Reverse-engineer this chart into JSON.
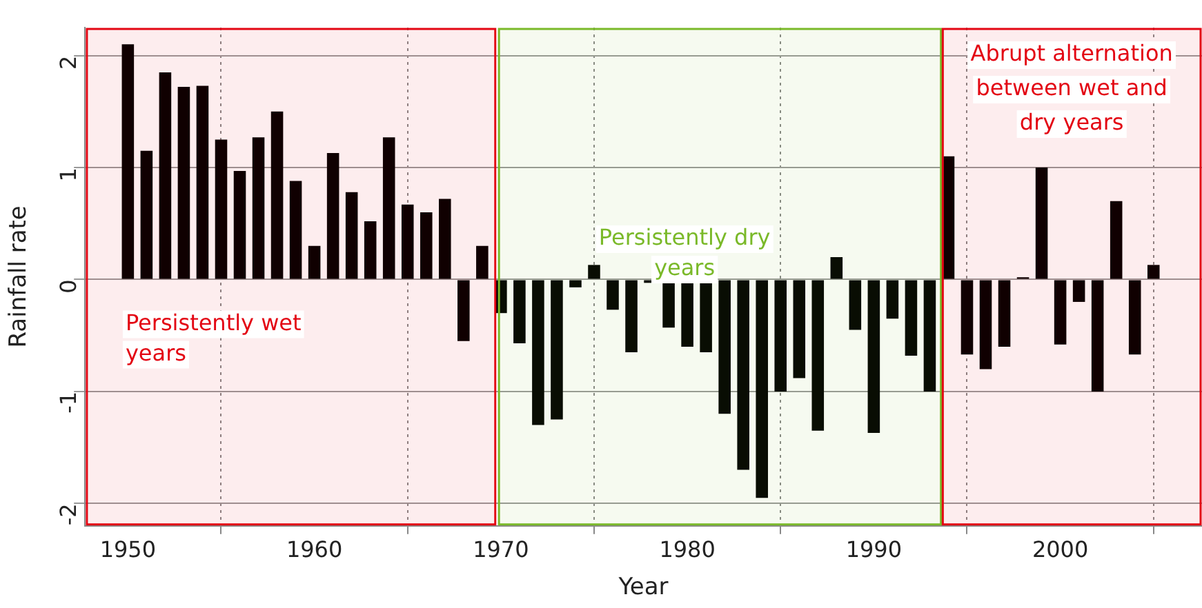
{
  "chart_data": {
    "type": "bar",
    "xlabel": "Year",
    "ylabel": "Rainfall rate",
    "x": [
      1950,
      1951,
      1952,
      1953,
      1954,
      1955,
      1956,
      1957,
      1958,
      1959,
      1960,
      1961,
      1962,
      1963,
      1964,
      1965,
      1966,
      1967,
      1968,
      1969,
      1970,
      1971,
      1972,
      1973,
      1974,
      1975,
      1976,
      1977,
      1978,
      1979,
      1980,
      1981,
      1982,
      1983,
      1984,
      1985,
      1986,
      1987,
      1988,
      1989,
      1990,
      1991,
      1992,
      1993,
      1994,
      1995,
      1996,
      1997,
      1998,
      1999,
      2000,
      2001,
      2002,
      2003,
      2004,
      2005
    ],
    "values": [
      2.1,
      1.15,
      1.85,
      1.72,
      1.73,
      1.25,
      0.97,
      1.27,
      1.5,
      0.88,
      0.3,
      1.13,
      0.78,
      0.52,
      1.27,
      0.67,
      0.6,
      0.72,
      -0.55,
      0.3,
      -0.3,
      -0.57,
      -1.3,
      -1.25,
      -0.07,
      0.13,
      -0.27,
      -0.65,
      -0.03,
      -0.43,
      -0.6,
      -0.65,
      -1.2,
      -1.7,
      -1.95,
      -1.0,
      -0.88,
      -1.35,
      0.2,
      -0.45,
      -1.37,
      -0.35,
      -0.68,
      -1.0,
      1.1,
      -0.67,
      -0.8,
      -0.6,
      0.02,
      1.0,
      -0.58,
      -0.2,
      -1.0,
      0.7,
      -0.67,
      0.13
    ],
    "color": "#000000",
    "xlim": [
      1947.7,
      2007.6
    ],
    "xticks": [
      1950,
      1960,
      1970,
      1980,
      1990,
      2000
    ],
    "ylim": [
      -2.2,
      2.25
    ],
    "yticks": [
      -2,
      -1,
      0,
      1,
      2
    ],
    "grid": true,
    "bands": [
      {
        "axis": "x",
        "from": 1947.8,
        "to": 1969.7,
        "label": "Persistently wet years",
        "color": "#e30613"
      },
      {
        "axis": "x",
        "from": 1969.9,
        "to": 1993.6,
        "label": "Persistently dry years",
        "color": "#7ab929"
      },
      {
        "axis": "x",
        "from": 1993.7,
        "to": 2007.6,
        "label": "Abrupt alternation between wet and dry years",
        "color": "#e30613"
      }
    ]
  }
}
